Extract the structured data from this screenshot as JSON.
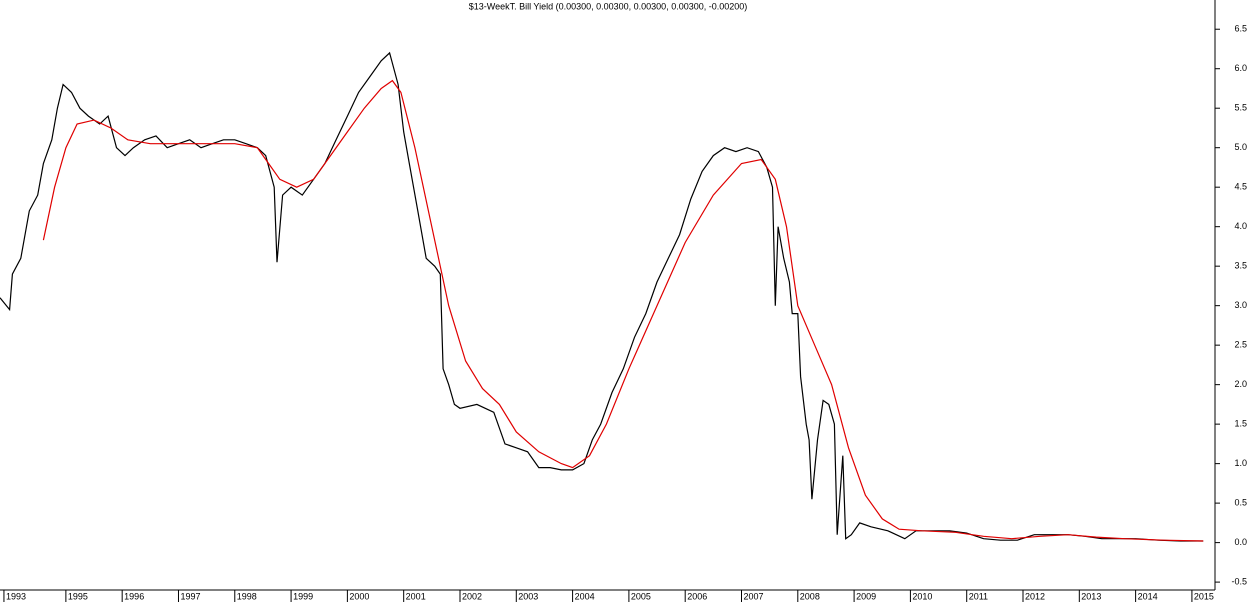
{
  "chart_data": {
    "type": "line",
    "title": "$13-WeekT. Bill Yield (0.00300, 0.00300, 0.00300, 0.00300, -0.00200)",
    "xlim": [
      1993.83,
      2015.41
    ],
    "xticks": [
      {
        "value": 1993.9,
        "label": "1993"
      },
      1995,
      1996,
      1997,
      1998,
      1999,
      2000,
      2001,
      2002,
      2003,
      2004,
      2005,
      2006,
      2007,
      2008,
      2009,
      2010,
      2011,
      2012,
      2013,
      2014,
      2015
    ],
    "ylim": [
      -0.6,
      6.87
    ],
    "yticks": [
      -0.5,
      {
        "value": 0,
        "label": "0.0"
      },
      0.5,
      {
        "value": 1,
        "label": "1.0"
      },
      1.5,
      {
        "value": 2,
        "label": "2.0"
      },
      2.5,
      {
        "value": 3,
        "label": "3.0"
      },
      3.5,
      {
        "value": 4,
        "label": "4.0"
      },
      4.5,
      {
        "value": 5,
        "label": "5.0"
      },
      5.5,
      {
        "value": 6,
        "label": "6.0"
      },
      6.5
    ],
    "series": [
      {
        "color": "#000000",
        "x": [
          1993.83,
          1994.0,
          1994.05,
          1994.2,
          1994.35,
          1994.5,
          1994.6,
          1994.75,
          1994.85,
          1994.95,
          1995.1,
          1995.25,
          1995.4,
          1995.6,
          1995.75,
          1995.9,
          1996.05,
          1996.2,
          1996.4,
          1996.6,
          1996.8,
          1997.0,
          1997.2,
          1997.4,
          1997.6,
          1997.8,
          1998.0,
          1998.2,
          1998.4,
          1998.55,
          1998.7,
          1998.75,
          1998.85,
          1999.0,
          1999.2,
          1999.4,
          1999.6,
          1999.8,
          2000.0,
          2000.2,
          2000.4,
          2000.6,
          2000.75,
          2000.9,
          2001.0,
          2001.1,
          2001.25,
          2001.4,
          2001.55,
          2001.65,
          2001.7,
          2001.8,
          2001.9,
          2002.0,
          2002.3,
          2002.6,
          2002.8,
          2003.0,
          2003.2,
          2003.4,
          2003.6,
          2003.8,
          2004.0,
          2004.2,
          2004.35,
          2004.5,
          2004.7,
          2004.9,
          2005.1,
          2005.3,
          2005.5,
          2005.7,
          2005.9,
          2006.1,
          2006.3,
          2006.5,
          2006.7,
          2006.9,
          2007.1,
          2007.3,
          2007.45,
          2007.55,
          2007.6,
          2007.65,
          2007.75,
          2007.85,
          2007.9,
          2008.0,
          2008.05,
          2008.15,
          2008.2,
          2008.25,
          2008.35,
          2008.45,
          2008.55,
          2008.65,
          2008.7,
          2008.8,
          2008.85,
          2008.95,
          2009.1,
          2009.3,
          2009.6,
          2009.9,
          2010.1,
          2010.4,
          2010.7,
          2011.0,
          2011.3,
          2011.6,
          2011.9,
          2012.2,
          2012.5,
          2012.8,
          2013.1,
          2013.4,
          2013.7,
          2014.0,
          2014.4,
          2014.8,
          2015.2
        ],
        "values": [
          3.1,
          2.95,
          3.4,
          3.6,
          4.2,
          4.4,
          4.8,
          5.1,
          5.5,
          5.8,
          5.7,
          5.5,
          5.4,
          5.3,
          5.4,
          5.0,
          4.9,
          5.0,
          5.1,
          5.15,
          5.0,
          5.05,
          5.1,
          5.0,
          5.05,
          5.1,
          5.1,
          5.05,
          5.0,
          4.9,
          4.5,
          3.55,
          4.4,
          4.5,
          4.4,
          4.6,
          4.8,
          5.1,
          5.4,
          5.7,
          5.9,
          6.1,
          6.2,
          5.8,
          5.2,
          4.8,
          4.2,
          3.6,
          3.5,
          3.4,
          2.2,
          2.0,
          1.75,
          1.7,
          1.75,
          1.65,
          1.25,
          1.2,
          1.15,
          0.95,
          0.95,
          0.92,
          0.92,
          1.0,
          1.3,
          1.5,
          1.9,
          2.2,
          2.6,
          2.9,
          3.3,
          3.6,
          3.9,
          4.35,
          4.7,
          4.9,
          5.0,
          4.95,
          5.0,
          4.95,
          4.75,
          4.5,
          3.0,
          4.0,
          3.6,
          3.3,
          2.9,
          2.9,
          2.1,
          1.5,
          1.3,
          0.55,
          1.3,
          1.8,
          1.75,
          1.5,
          0.1,
          1.1,
          0.05,
          0.1,
          0.25,
          0.2,
          0.15,
          0.05,
          0.15,
          0.15,
          0.15,
          0.12,
          0.05,
          0.03,
          0.03,
          0.1,
          0.1,
          0.1,
          0.08,
          0.05,
          0.05,
          0.05,
          0.03,
          0.02,
          0.02
        ]
      },
      {
        "color": "#e00000",
        "x": [
          1994.6,
          1994.8,
          1995.0,
          1995.2,
          1995.5,
          1995.8,
          1996.1,
          1996.5,
          1997.0,
          1997.5,
          1998.0,
          1998.4,
          1998.6,
          1998.8,
          1999.1,
          1999.4,
          1999.7,
          2000.0,
          2000.3,
          2000.6,
          2000.8,
          2000.95,
          2001.2,
          2001.5,
          2001.8,
          2002.1,
          2002.4,
          2002.7,
          2003.0,
          2003.4,
          2003.8,
          2004.0,
          2004.3,
          2004.6,
          2005.0,
          2005.5,
          2006.0,
          2006.5,
          2007.0,
          2007.35,
          2007.6,
          2007.8,
          2008.0,
          2008.3,
          2008.6,
          2008.9,
          2009.2,
          2009.5,
          2009.8,
          2010.2,
          2010.8,
          2011.3,
          2011.8,
          2012.3,
          2012.8,
          2013.3,
          2013.8,
          2014.5,
          2015.2
        ],
        "values": [
          3.83,
          4.5,
          5.0,
          5.3,
          5.35,
          5.25,
          5.1,
          5.05,
          5.05,
          5.05,
          5.05,
          5.0,
          4.8,
          4.6,
          4.5,
          4.6,
          4.9,
          5.2,
          5.5,
          5.75,
          5.85,
          5.7,
          5.0,
          4.0,
          3.0,
          2.3,
          1.95,
          1.75,
          1.4,
          1.15,
          1.0,
          0.95,
          1.1,
          1.5,
          2.2,
          3.0,
          3.8,
          4.4,
          4.8,
          4.85,
          4.6,
          4.0,
          3.0,
          2.5,
          2.0,
          1.2,
          0.6,
          0.3,
          0.17,
          0.15,
          0.13,
          0.08,
          0.05,
          0.08,
          0.1,
          0.07,
          0.05,
          0.03,
          0.02
        ]
      }
    ]
  }
}
